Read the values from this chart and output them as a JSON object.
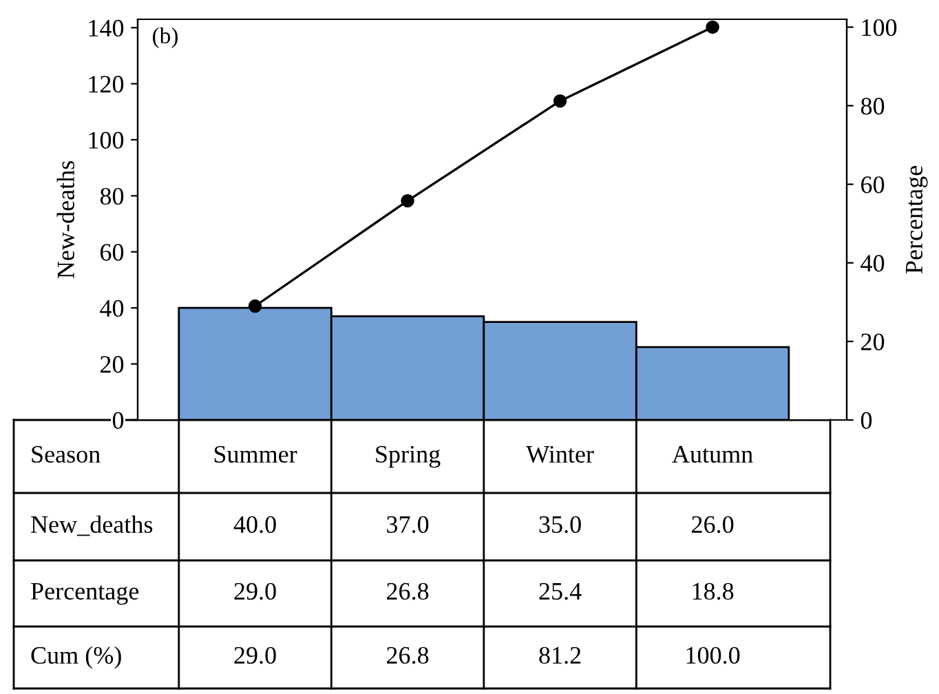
{
  "chart_data": {
    "type": "bar",
    "categories": [
      "Summer",
      "Spring",
      "Winter",
      "Autumn"
    ],
    "xlabel": "Season",
    "ylabel": "New-deaths",
    "y2label": "Percentage",
    "ylim": [
      0,
      143
    ],
    "yticks": [
      0,
      20,
      40,
      60,
      80,
      100,
      120,
      140
    ],
    "y2lim": [
      0,
      102
    ],
    "y2ticks": [
      0,
      20,
      40,
      60,
      80,
      100
    ],
    "series": [
      {
        "color": "#729fd6",
        "values": [
          40.0,
          37.0,
          35.0,
          26.0
        ]
      },
      {
        "type": "line",
        "axis": "y2",
        "color": "#000000",
        "marker": "circle",
        "values": [
          29.0,
          55.8,
          81.2,
          100.0
        ]
      }
    ],
    "annotations": [
      "(b)",
      "New_deaths",
      "40.0",
      "37.0",
      "35.0",
      "26.0",
      "Percentage",
      "29.0",
      "26.8",
      "25.4",
      "18.8",
      "Cum (%)",
      "29.0",
      "26.8",
      "81.2",
      "100.0"
    ],
    "grid": false,
    "legend": false
  }
}
